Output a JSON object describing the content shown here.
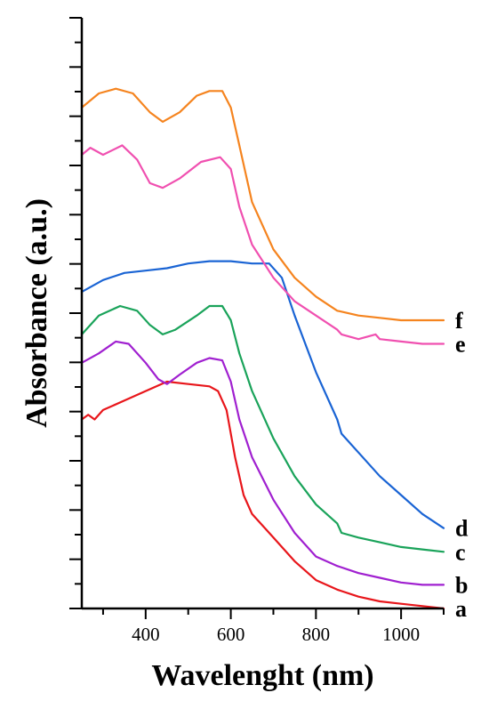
{
  "chart_data": {
    "type": "line",
    "title": "",
    "xlabel": "Wavelenght (nm)",
    "ylabel": "Absorbance (a.u.)",
    "xlim": [
      250,
      1100
    ],
    "ylim": [
      0,
      12.5
    ],
    "x_ticks": [
      400,
      600,
      800,
      1000
    ],
    "y_tick_count": 12,
    "y_tick_labels": false,
    "grid": false,
    "series": [
      {
        "name": "a",
        "color": "#e8161b",
        "points": [
          [
            250,
            4.0
          ],
          [
            265,
            4.1
          ],
          [
            280,
            4.0
          ],
          [
            300,
            4.2
          ],
          [
            350,
            4.4
          ],
          [
            400,
            4.6
          ],
          [
            450,
            4.8
          ],
          [
            500,
            4.75
          ],
          [
            550,
            4.7
          ],
          [
            570,
            4.6
          ],
          [
            590,
            4.2
          ],
          [
            610,
            3.2
          ],
          [
            630,
            2.4
          ],
          [
            650,
            2.0
          ],
          [
            700,
            1.5
          ],
          [
            750,
            1.0
          ],
          [
            800,
            0.6
          ],
          [
            850,
            0.4
          ],
          [
            900,
            0.25
          ],
          [
            950,
            0.15
          ],
          [
            1000,
            0.1
          ],
          [
            1050,
            0.05
          ],
          [
            1100,
            0.0
          ]
        ]
      },
      {
        "name": "b",
        "color": "#a020d0",
        "points": [
          [
            250,
            5.2
          ],
          [
            290,
            5.4
          ],
          [
            330,
            5.65
          ],
          [
            360,
            5.6
          ],
          [
            400,
            5.2
          ],
          [
            430,
            4.85
          ],
          [
            450,
            4.75
          ],
          [
            480,
            4.95
          ],
          [
            520,
            5.2
          ],
          [
            550,
            5.3
          ],
          [
            580,
            5.25
          ],
          [
            600,
            4.8
          ],
          [
            620,
            4.0
          ],
          [
            650,
            3.2
          ],
          [
            700,
            2.3
          ],
          [
            750,
            1.6
          ],
          [
            800,
            1.1
          ],
          [
            850,
            0.9
          ],
          [
            900,
            0.75
          ],
          [
            950,
            0.65
          ],
          [
            1000,
            0.55
          ],
          [
            1050,
            0.5
          ],
          [
            1100,
            0.5
          ]
        ]
      },
      {
        "name": "c",
        "color": "#1aa35a",
        "points": [
          [
            250,
            5.8
          ],
          [
            290,
            6.2
          ],
          [
            340,
            6.4
          ],
          [
            380,
            6.3
          ],
          [
            410,
            6.0
          ],
          [
            440,
            5.8
          ],
          [
            470,
            5.9
          ],
          [
            520,
            6.2
          ],
          [
            550,
            6.4
          ],
          [
            580,
            6.4
          ],
          [
            600,
            6.1
          ],
          [
            620,
            5.4
          ],
          [
            650,
            4.6
          ],
          [
            700,
            3.6
          ],
          [
            750,
            2.8
          ],
          [
            800,
            2.2
          ],
          [
            850,
            1.8
          ],
          [
            860,
            1.6
          ],
          [
            900,
            1.5
          ],
          [
            950,
            1.4
          ],
          [
            1000,
            1.3
          ],
          [
            1050,
            1.25
          ],
          [
            1100,
            1.2
          ]
        ]
      },
      {
        "name": "d",
        "color": "#1a64d4",
        "points": [
          [
            250,
            6.7
          ],
          [
            300,
            6.95
          ],
          [
            350,
            7.1
          ],
          [
            400,
            7.15
          ],
          [
            450,
            7.2
          ],
          [
            500,
            7.3
          ],
          [
            550,
            7.35
          ],
          [
            600,
            7.35
          ],
          [
            650,
            7.3
          ],
          [
            690,
            7.3
          ],
          [
            720,
            7.0
          ],
          [
            750,
            6.2
          ],
          [
            800,
            5.0
          ],
          [
            850,
            4.0
          ],
          [
            860,
            3.7
          ],
          [
            900,
            3.3
          ],
          [
            950,
            2.8
          ],
          [
            1000,
            2.4
          ],
          [
            1050,
            2.0
          ],
          [
            1100,
            1.7
          ]
        ]
      },
      {
        "name": "e",
        "color": "#f050b0",
        "points": [
          [
            250,
            9.6
          ],
          [
            270,
            9.75
          ],
          [
            300,
            9.6
          ],
          [
            345,
            9.8
          ],
          [
            380,
            9.5
          ],
          [
            410,
            9.0
          ],
          [
            440,
            8.9
          ],
          [
            480,
            9.1
          ],
          [
            530,
            9.45
          ],
          [
            575,
            9.55
          ],
          [
            600,
            9.3
          ],
          [
            620,
            8.5
          ],
          [
            650,
            7.7
          ],
          [
            700,
            7.0
          ],
          [
            750,
            6.5
          ],
          [
            800,
            6.2
          ],
          [
            850,
            5.9
          ],
          [
            860,
            5.8
          ],
          [
            900,
            5.7
          ],
          [
            940,
            5.8
          ],
          [
            950,
            5.7
          ],
          [
            1000,
            5.65
          ],
          [
            1050,
            5.6
          ],
          [
            1100,
            5.6
          ]
        ]
      },
      {
        "name": "f",
        "color": "#f5841f",
        "points": [
          [
            250,
            10.6
          ],
          [
            290,
            10.9
          ],
          [
            330,
            11.0
          ],
          [
            370,
            10.9
          ],
          [
            410,
            10.5
          ],
          [
            440,
            10.3
          ],
          [
            480,
            10.5
          ],
          [
            520,
            10.85
          ],
          [
            550,
            10.95
          ],
          [
            580,
            10.95
          ],
          [
            600,
            10.6
          ],
          [
            620,
            9.8
          ],
          [
            650,
            8.6
          ],
          [
            700,
            7.6
          ],
          [
            750,
            7.0
          ],
          [
            800,
            6.6
          ],
          [
            850,
            6.3
          ],
          [
            900,
            6.2
          ],
          [
            950,
            6.15
          ],
          [
            1000,
            6.1
          ],
          [
            1050,
            6.1
          ],
          [
            1100,
            6.1
          ]
        ]
      }
    ]
  }
}
